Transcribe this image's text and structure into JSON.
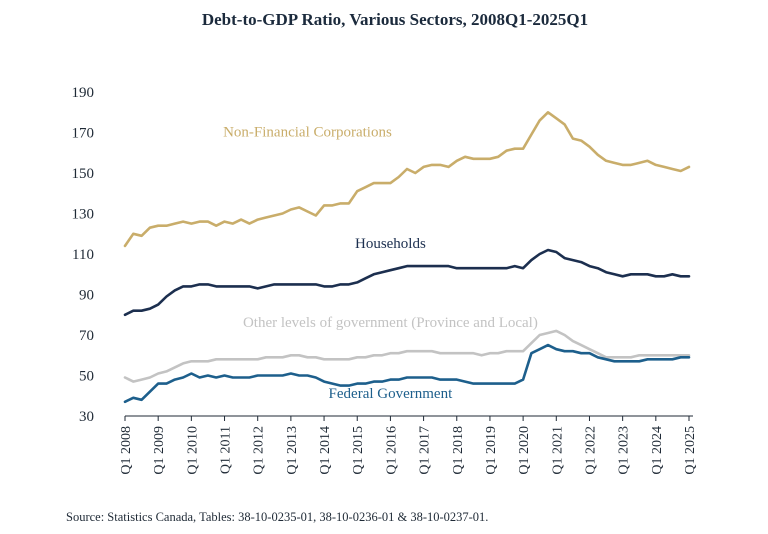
{
  "chart_data": {
    "type": "line",
    "title": "Debt-to-GDP Ratio, Various Sectors, 2008Q1-2025Q1",
    "source": "Source: Statistics Canada, Tables: 38-10-0235-01, 38-10-0236-01 & 38-10-0237-01.",
    "xlabel": "",
    "ylabel": "",
    "ylim": [
      30,
      190
    ],
    "yticks": [
      30,
      50,
      70,
      90,
      110,
      130,
      150,
      170,
      190
    ],
    "x_range": [
      2008.0,
      2025.0
    ],
    "xtick_labels": [
      "Q1 2008",
      "Q1 2009",
      "Q1 2010",
      "Q1 2011",
      "Q1 2012",
      "Q1 2013",
      "Q1 2014",
      "Q1 2015",
      "Q1 2016",
      "Q1 2017",
      "Q1 2018",
      "Q1 2019",
      "Q1 2020",
      "Q1 2021",
      "Q1 2022",
      "Q1 2023",
      "Q1 2024",
      "Q1 2025"
    ],
    "grid": false,
    "legend": "none",
    "series": [
      {
        "name": "Non-Financial Corporations",
        "color": "#c9ad6a",
        "points": [
          [
            2008.0,
            114
          ],
          [
            2008.25,
            120
          ],
          [
            2008.5,
            119
          ],
          [
            2008.75,
            123
          ],
          [
            2009.0,
            124
          ],
          [
            2009.25,
            124
          ],
          [
            2009.5,
            125
          ],
          [
            2009.75,
            126
          ],
          [
            2010.0,
            125
          ],
          [
            2010.25,
            126
          ],
          [
            2010.5,
            126
          ],
          [
            2010.75,
            124
          ],
          [
            2011.0,
            126
          ],
          [
            2011.25,
            125
          ],
          [
            2011.5,
            127
          ],
          [
            2011.75,
            125
          ],
          [
            2012.0,
            127
          ],
          [
            2012.25,
            128
          ],
          [
            2012.5,
            129
          ],
          [
            2012.75,
            130
          ],
          [
            2013.0,
            132
          ],
          [
            2013.25,
            133
          ],
          [
            2013.5,
            131
          ],
          [
            2013.75,
            129
          ],
          [
            2014.0,
            134
          ],
          [
            2014.25,
            134
          ],
          [
            2014.5,
            135
          ],
          [
            2014.75,
            135
          ],
          [
            2015.0,
            141
          ],
          [
            2015.25,
            143
          ],
          [
            2015.5,
            145
          ],
          [
            2015.75,
            145
          ],
          [
            2016.0,
            145
          ],
          [
            2016.25,
            148
          ],
          [
            2016.5,
            152
          ],
          [
            2016.75,
            150
          ],
          [
            2017.0,
            153
          ],
          [
            2017.25,
            154
          ],
          [
            2017.5,
            154
          ],
          [
            2017.75,
            153
          ],
          [
            2018.0,
            156
          ],
          [
            2018.25,
            158
          ],
          [
            2018.5,
            157
          ],
          [
            2018.75,
            157
          ],
          [
            2019.0,
            157
          ],
          [
            2019.25,
            158
          ],
          [
            2019.5,
            161
          ],
          [
            2019.75,
            162
          ],
          [
            2020.0,
            162
          ],
          [
            2020.25,
            169
          ],
          [
            2020.5,
            176
          ],
          [
            2020.75,
            180
          ],
          [
            2021.0,
            177
          ],
          [
            2021.25,
            174
          ],
          [
            2021.5,
            167
          ],
          [
            2021.75,
            166
          ],
          [
            2022.0,
            163
          ],
          [
            2022.25,
            159
          ],
          [
            2022.5,
            156
          ],
          [
            2022.75,
            155
          ],
          [
            2023.0,
            154
          ],
          [
            2023.25,
            154
          ],
          [
            2023.5,
            155
          ],
          [
            2023.75,
            156
          ],
          [
            2024.0,
            154
          ],
          [
            2024.25,
            153
          ],
          [
            2024.5,
            152
          ],
          [
            2024.75,
            151
          ],
          [
            2025.0,
            153
          ]
        ]
      },
      {
        "name": "Households",
        "color": "#1c2f4f",
        "points": [
          [
            2008.0,
            80
          ],
          [
            2008.25,
            82
          ],
          [
            2008.5,
            82
          ],
          [
            2008.75,
            83
          ],
          [
            2009.0,
            85
          ],
          [
            2009.25,
            89
          ],
          [
            2009.5,
            92
          ],
          [
            2009.75,
            94
          ],
          [
            2010.0,
            94
          ],
          [
            2010.25,
            95
          ],
          [
            2010.5,
            95
          ],
          [
            2010.75,
            94
          ],
          [
            2011.0,
            94
          ],
          [
            2011.25,
            94
          ],
          [
            2011.5,
            94
          ],
          [
            2011.75,
            94
          ],
          [
            2012.0,
            93
          ],
          [
            2012.25,
            94
          ],
          [
            2012.5,
            95
          ],
          [
            2012.75,
            95
          ],
          [
            2013.0,
            95
          ],
          [
            2013.25,
            95
          ],
          [
            2013.5,
            95
          ],
          [
            2013.75,
            95
          ],
          [
            2014.0,
            94
          ],
          [
            2014.25,
            94
          ],
          [
            2014.5,
            95
          ],
          [
            2014.75,
            95
          ],
          [
            2015.0,
            96
          ],
          [
            2015.25,
            98
          ],
          [
            2015.5,
            100
          ],
          [
            2015.75,
            101
          ],
          [
            2016.0,
            102
          ],
          [
            2016.25,
            103
          ],
          [
            2016.5,
            104
          ],
          [
            2016.75,
            104
          ],
          [
            2017.0,
            104
          ],
          [
            2017.25,
            104
          ],
          [
            2017.5,
            104
          ],
          [
            2017.75,
            104
          ],
          [
            2018.0,
            103
          ],
          [
            2018.25,
            103
          ],
          [
            2018.5,
            103
          ],
          [
            2018.75,
            103
          ],
          [
            2019.0,
            103
          ],
          [
            2019.25,
            103
          ],
          [
            2019.5,
            103
          ],
          [
            2019.75,
            104
          ],
          [
            2020.0,
            103
          ],
          [
            2020.25,
            107
          ],
          [
            2020.5,
            110
          ],
          [
            2020.75,
            112
          ],
          [
            2021.0,
            111
          ],
          [
            2021.25,
            108
          ],
          [
            2021.5,
            107
          ],
          [
            2021.75,
            106
          ],
          [
            2022.0,
            104
          ],
          [
            2022.25,
            103
          ],
          [
            2022.5,
            101
          ],
          [
            2022.75,
            100
          ],
          [
            2023.0,
            99
          ],
          [
            2023.25,
            100
          ],
          [
            2023.5,
            100
          ],
          [
            2023.75,
            100
          ],
          [
            2024.0,
            99
          ],
          [
            2024.25,
            99
          ],
          [
            2024.5,
            100
          ],
          [
            2024.75,
            99
          ],
          [
            2025.0,
            99
          ]
        ]
      },
      {
        "name": "Other levels of government (Province and Local)",
        "color": "#c3c3c3",
        "points": [
          [
            2008.0,
            49
          ],
          [
            2008.25,
            47
          ],
          [
            2008.5,
            48
          ],
          [
            2008.75,
            49
          ],
          [
            2009.0,
            51
          ],
          [
            2009.25,
            52
          ],
          [
            2009.5,
            54
          ],
          [
            2009.75,
            56
          ],
          [
            2010.0,
            57
          ],
          [
            2010.25,
            57
          ],
          [
            2010.5,
            57
          ],
          [
            2010.75,
            58
          ],
          [
            2011.0,
            58
          ],
          [
            2011.25,
            58
          ],
          [
            2011.5,
            58
          ],
          [
            2011.75,
            58
          ],
          [
            2012.0,
            58
          ],
          [
            2012.25,
            59
          ],
          [
            2012.5,
            59
          ],
          [
            2012.75,
            59
          ],
          [
            2013.0,
            60
          ],
          [
            2013.25,
            60
          ],
          [
            2013.5,
            59
          ],
          [
            2013.75,
            59
          ],
          [
            2014.0,
            58
          ],
          [
            2014.25,
            58
          ],
          [
            2014.5,
            58
          ],
          [
            2014.75,
            58
          ],
          [
            2015.0,
            59
          ],
          [
            2015.25,
            59
          ],
          [
            2015.5,
            60
          ],
          [
            2015.75,
            60
          ],
          [
            2016.0,
            61
          ],
          [
            2016.25,
            61
          ],
          [
            2016.5,
            62
          ],
          [
            2016.75,
            62
          ],
          [
            2017.0,
            62
          ],
          [
            2017.25,
            62
          ],
          [
            2017.5,
            61
          ],
          [
            2017.75,
            61
          ],
          [
            2018.0,
            61
          ],
          [
            2018.25,
            61
          ],
          [
            2018.5,
            61
          ],
          [
            2018.75,
            60
          ],
          [
            2019.0,
            61
          ],
          [
            2019.25,
            61
          ],
          [
            2019.5,
            62
          ],
          [
            2019.75,
            62
          ],
          [
            2020.0,
            62
          ],
          [
            2020.25,
            66
          ],
          [
            2020.5,
            70
          ],
          [
            2020.75,
            71
          ],
          [
            2021.0,
            72
          ],
          [
            2021.25,
            70
          ],
          [
            2021.5,
            67
          ],
          [
            2021.75,
            65
          ],
          [
            2022.0,
            63
          ],
          [
            2022.25,
            61
          ],
          [
            2022.5,
            59
          ],
          [
            2022.75,
            59
          ],
          [
            2023.0,
            59
          ],
          [
            2023.25,
            59
          ],
          [
            2023.5,
            60
          ],
          [
            2023.75,
            60
          ],
          [
            2024.0,
            60
          ],
          [
            2024.25,
            60
          ],
          [
            2024.5,
            60
          ],
          [
            2024.75,
            60
          ],
          [
            2025.0,
            60
          ]
        ]
      },
      {
        "name": "Federal Government",
        "color": "#1d5f8c",
        "points": [
          [
            2008.0,
            37
          ],
          [
            2008.25,
            39
          ],
          [
            2008.5,
            38
          ],
          [
            2008.75,
            42
          ],
          [
            2009.0,
            46
          ],
          [
            2009.25,
            46
          ],
          [
            2009.5,
            48
          ],
          [
            2009.75,
            49
          ],
          [
            2010.0,
            51
          ],
          [
            2010.25,
            49
          ],
          [
            2010.5,
            50
          ],
          [
            2010.75,
            49
          ],
          [
            2011.0,
            50
          ],
          [
            2011.25,
            49
          ],
          [
            2011.5,
            49
          ],
          [
            2011.75,
            49
          ],
          [
            2012.0,
            50
          ],
          [
            2012.25,
            50
          ],
          [
            2012.5,
            50
          ],
          [
            2012.75,
            50
          ],
          [
            2013.0,
            51
          ],
          [
            2013.25,
            50
          ],
          [
            2013.5,
            50
          ],
          [
            2013.75,
            49
          ],
          [
            2014.0,
            47
          ],
          [
            2014.25,
            46
          ],
          [
            2014.5,
            45
          ],
          [
            2014.75,
            45
          ],
          [
            2015.0,
            46
          ],
          [
            2015.25,
            46
          ],
          [
            2015.5,
            47
          ],
          [
            2015.75,
            47
          ],
          [
            2016.0,
            48
          ],
          [
            2016.25,
            48
          ],
          [
            2016.5,
            49
          ],
          [
            2016.75,
            49
          ],
          [
            2017.0,
            49
          ],
          [
            2017.25,
            49
          ],
          [
            2017.5,
            48
          ],
          [
            2017.75,
            48
          ],
          [
            2018.0,
            48
          ],
          [
            2018.25,
            47
          ],
          [
            2018.5,
            46
          ],
          [
            2018.75,
            46
          ],
          [
            2019.0,
            46
          ],
          [
            2019.25,
            46
          ],
          [
            2019.5,
            46
          ],
          [
            2019.75,
            46
          ],
          [
            2020.0,
            48
          ],
          [
            2020.25,
            61
          ],
          [
            2020.5,
            63
          ],
          [
            2020.75,
            65
          ],
          [
            2021.0,
            63
          ],
          [
            2021.25,
            62
          ],
          [
            2021.5,
            62
          ],
          [
            2021.75,
            61
          ],
          [
            2022.0,
            61
          ],
          [
            2022.25,
            59
          ],
          [
            2022.5,
            58
          ],
          [
            2022.75,
            57
          ],
          [
            2023.0,
            57
          ],
          [
            2023.25,
            57
          ],
          [
            2023.5,
            57
          ],
          [
            2023.75,
            58
          ],
          [
            2024.0,
            58
          ],
          [
            2024.25,
            58
          ],
          [
            2024.5,
            58
          ],
          [
            2024.75,
            59
          ],
          [
            2025.0,
            59
          ]
        ]
      }
    ],
    "annotations": [
      {
        "series": 0,
        "text": "Non-Financial Corporations",
        "at": [
          2013.5,
          168
        ]
      },
      {
        "series": 1,
        "text": "Households",
        "at": [
          2016.0,
          113
        ]
      },
      {
        "series": 2,
        "text": "Other levels of government (Province and Local)",
        "at": [
          2016.0,
          74
        ]
      },
      {
        "series": 3,
        "text": "Federal Government",
        "at": [
          2016.0,
          39
        ]
      }
    ]
  }
}
